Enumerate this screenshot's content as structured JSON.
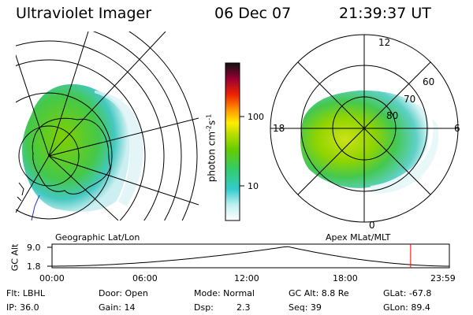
{
  "header": {
    "title": "Ultraviolet Imager",
    "date": "06 Dec 07",
    "time": "21:39:37 UT"
  },
  "colorbar": {
    "label": "photon cm^-2 s^-1",
    "ticks": [
      "100",
      "10"
    ]
  },
  "left_map": {
    "caption": "Geographic Lat/Lon"
  },
  "right_map": {
    "caption": "Apex MLat/MLT",
    "lat_labels": [
      "60",
      "70",
      "80"
    ],
    "mlt_labels": {
      "top": "12",
      "bottom": "0",
      "left": "18",
      "right": "6"
    }
  },
  "altitude_plot": {
    "ylabel": "GC Alt",
    "yticks": [
      "9.0",
      "1.8"
    ],
    "xticks": [
      "00:00",
      "06:00",
      "12:00",
      "18:00",
      "23:59"
    ],
    "marker_hour": 21.66,
    "line_color": "#000000",
    "marker_color": "#ff0000"
  },
  "info": {
    "filter": "Flt: LBHL",
    "door": "Door: Open",
    "mode": "Mode: Normal",
    "gc_alt": "GC Alt: 8.8 Re",
    "glat": "GLat: -67.8",
    "ip": "IP: 36.0",
    "gain": "Gain: 14",
    "dsp_label": "Dsp:",
    "dsp_value": "2.3",
    "seq": "Seq: 39",
    "glon": "GLon: 89.4"
  }
}
